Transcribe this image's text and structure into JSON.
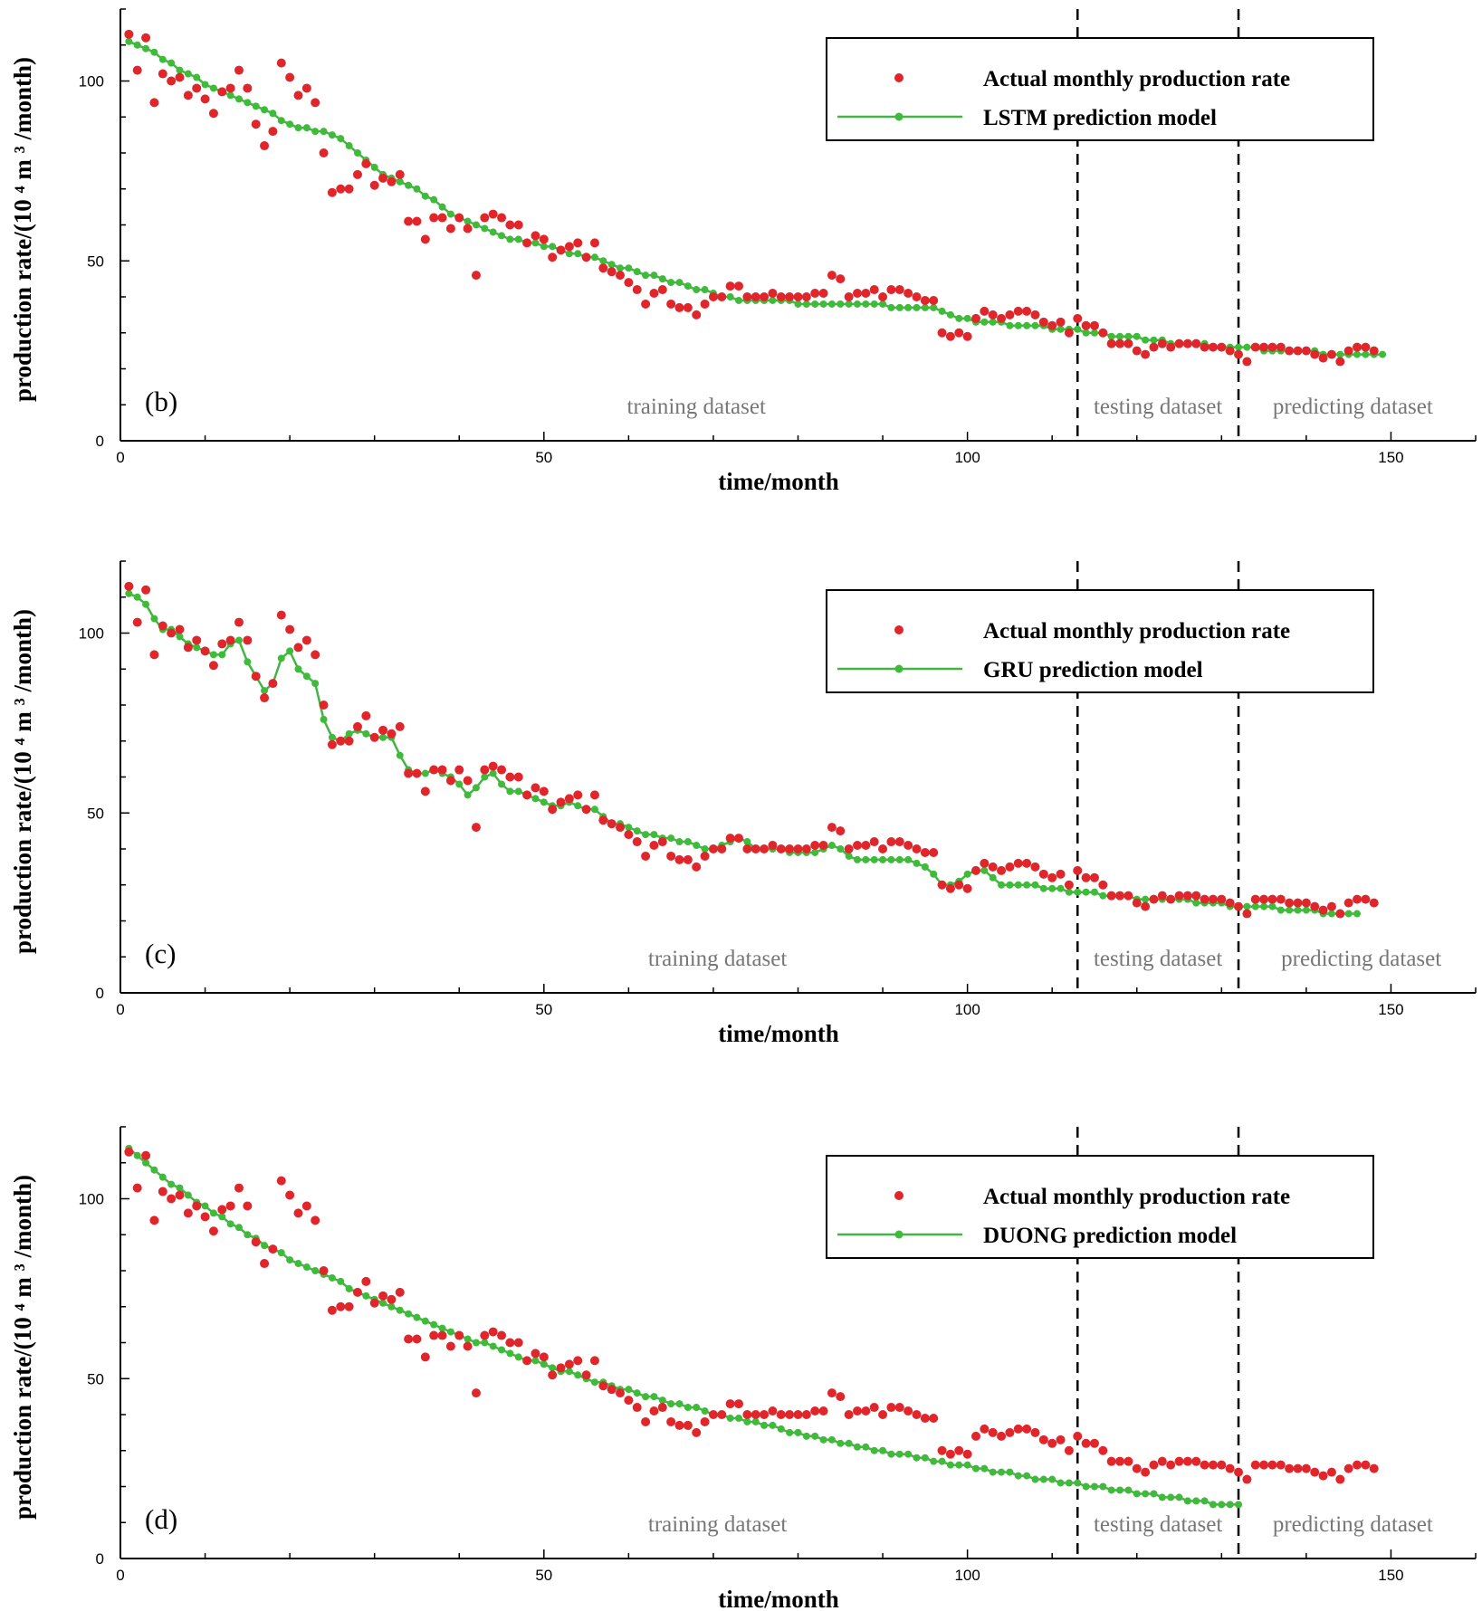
{
  "chart_data": [
    {
      "type": "scatter",
      "panel_label": "(b)",
      "xlabel": "time/month",
      "ylabel": "production rate/(10 ⁴ m ³ /month)",
      "xlim": [
        0,
        160
      ],
      "ylim": [
        0,
        120
      ],
      "xticks": [
        0,
        50,
        100,
        150
      ],
      "yticks": [
        0,
        50,
        100
      ],
      "dividers": [
        113,
        132
      ],
      "region_labels": [
        {
          "text": "training dataset",
          "x": 68
        },
        {
          "text": "testing dataset",
          "x": 122.5
        },
        {
          "text": "predicting dataset",
          "x": 145.5
        }
      ],
      "legend": {
        "actual": "Actual monthly production rate",
        "model": "LSTM prediction model",
        "position": "top-right"
      },
      "model_key": "lstm"
    },
    {
      "type": "scatter",
      "panel_label": "(c)",
      "xlabel": "time/month",
      "ylabel": "production rate/(10 ⁴ m ³ /month)",
      "xlim": [
        0,
        160
      ],
      "ylim": [
        0,
        120
      ],
      "xticks": [
        0,
        50,
        100,
        150
      ],
      "yticks": [
        0,
        50,
        100
      ],
      "dividers": [
        113,
        132
      ],
      "region_labels": [
        {
          "text": "training dataset",
          "x": 70.5
        },
        {
          "text": "testing dataset",
          "x": 122.5
        },
        {
          "text": "predicting dataset",
          "x": 146.5
        }
      ],
      "legend": {
        "actual": "Actual monthly production rate",
        "model": "GRU prediction model",
        "position": "top-right"
      },
      "model_key": "gru"
    },
    {
      "type": "scatter",
      "panel_label": "(d)",
      "xlabel": "time/month",
      "ylabel": "production rate/(10 ⁴ m ³ /month)",
      "xlim": [
        0,
        160
      ],
      "ylim": [
        0,
        120
      ],
      "xticks": [
        0,
        50,
        100,
        150
      ],
      "yticks": [
        0,
        50,
        100
      ],
      "dividers": [
        113,
        132
      ],
      "region_labels": [
        {
          "text": "training dataset",
          "x": 70.5
        },
        {
          "text": "testing dataset",
          "x": 122.5
        },
        {
          "text": "predicting dataset",
          "x": 145.5
        }
      ],
      "legend": {
        "actual": "Actual monthly production rate",
        "model": "DUONG prediction model",
        "position": "top-right"
      },
      "model_key": "duong"
    }
  ],
  "series": {
    "actual": [
      113,
      103,
      112,
      94,
      102,
      100,
      101,
      96,
      98,
      95,
      91,
      97,
      98,
      103,
      98,
      88,
      82,
      86,
      105,
      101,
      96,
      98,
      94,
      80,
      69,
      70,
      70,
      74,
      77,
      71,
      73,
      72,
      74,
      61,
      61,
      56,
      62,
      62,
      59,
      62,
      59,
      46,
      62,
      63,
      62,
      60,
      60,
      55,
      57,
      56,
      51,
      53,
      54,
      55,
      51,
      55,
      48,
      47,
      46,
      44,
      42,
      38,
      41,
      42,
      38,
      37,
      37,
      35,
      38,
      40,
      40,
      43,
      43,
      40,
      40,
      40,
      41,
      40,
      40,
      40,
      40,
      41,
      41,
      46,
      45,
      40,
      41,
      41,
      42,
      40,
      42,
      42,
      41,
      40,
      39,
      39,
      30,
      29,
      30,
      29,
      34,
      36,
      35,
      34,
      35,
      36,
      36,
      35,
      33,
      32,
      33,
      30,
      34,
      32,
      32,
      30,
      27,
      27,
      27,
      25,
      24,
      26,
      27,
      26,
      27,
      27,
      27,
      26,
      26,
      26,
      25,
      24,
      22,
      26,
      26,
      26,
      26,
      25,
      25,
      25,
      24,
      23,
      24,
      22,
      25,
      26,
      26,
      25
    ],
    "lstm": [
      111,
      110,
      109,
      108,
      106,
      105,
      103,
      102,
      101,
      99,
      98,
      97,
      96,
      95,
      94,
      93,
      92,
      91,
      89,
      88,
      87,
      87,
      86,
      86,
      85,
      84,
      82,
      80,
      78,
      76,
      74,
      73,
      72,
      71,
      70,
      68,
      67,
      65,
      63,
      62,
      61,
      60,
      59,
      58,
      57,
      56,
      56,
      55,
      55,
      54,
      54,
      53,
      52,
      52,
      51,
      51,
      50,
      49,
      48,
      48,
      47,
      46,
      46,
      45,
      44,
      44,
      43,
      42,
      42,
      41,
      40,
      40,
      39,
      39,
      39,
      39,
      39,
      39,
      39,
      38,
      38,
      38,
      38,
      38,
      38,
      38,
      38,
      38,
      38,
      38,
      37,
      37,
      37,
      37,
      37,
      37,
      36,
      35,
      34,
      34,
      33,
      33,
      33,
      33,
      32,
      32,
      32,
      32,
      32,
      31,
      31,
      31,
      31,
      30,
      30,
      30,
      29,
      29,
      29,
      29,
      28,
      28,
      28,
      27,
      27,
      27,
      27,
      27,
      26,
      26,
      26,
      26,
      26,
      26,
      25,
      25,
      25,
      25,
      25,
      25,
      25,
      24,
      24,
      24,
      24,
      24,
      24,
      24,
      24
    ],
    "gru": [
      111,
      110,
      108,
      104,
      101,
      101,
      99,
      97,
      96,
      95,
      94,
      94,
      97,
      98,
      92,
      88,
      84,
      86,
      93,
      95,
      90,
      88,
      86,
      76,
      71,
      70,
      72,
      73,
      72,
      71,
      71,
      71,
      66,
      62,
      61,
      61,
      62,
      61,
      60,
      58,
      55,
      57,
      60,
      61,
      58,
      56,
      56,
      55,
      54,
      53,
      52,
      52,
      53,
      52,
      51,
      51,
      49,
      47,
      47,
      46,
      45,
      44,
      44,
      43,
      43,
      42,
      42,
      41,
      40,
      40,
      41,
      42,
      43,
      42,
      40,
      40,
      40,
      40,
      39,
      39,
      39,
      39,
      40,
      41,
      40,
      38,
      37,
      37,
      37,
      37,
      37,
      37,
      37,
      36,
      35,
      33,
      30,
      30,
      31,
      33,
      34,
      34,
      32,
      30,
      30,
      30,
      30,
      30,
      29,
      29,
      29,
      28,
      28,
      28,
      28,
      27,
      27,
      27,
      27,
      26,
      26,
      26,
      26,
      26,
      26,
      26,
      25,
      25,
      25,
      25,
      24,
      24,
      24,
      24,
      24,
      24,
      23,
      23,
      23,
      23,
      23,
      22,
      22,
      22,
      22,
      22
    ],
    "duong": [
      114,
      112,
      110,
      108,
      106,
      104,
      103,
      101,
      99,
      98,
      96,
      95,
      93,
      92,
      90,
      89,
      87,
      86,
      85,
      83,
      82,
      81,
      80,
      79,
      78,
      77,
      75,
      74,
      73,
      72,
      71,
      70,
      69,
      68,
      67,
      66,
      65,
      64,
      63,
      62,
      61,
      60,
      60,
      59,
      58,
      57,
      56,
      55,
      55,
      54,
      53,
      52,
      52,
      51,
      50,
      49,
      49,
      48,
      47,
      47,
      46,
      45,
      45,
      44,
      43,
      43,
      42,
      42,
      41,
      40,
      40,
      39,
      39,
      38,
      38,
      37,
      37,
      36,
      35,
      35,
      34,
      34,
      33,
      33,
      32,
      32,
      31,
      31,
      30,
      30,
      29,
      29,
      29,
      28,
      28,
      27,
      27,
      26,
      26,
      26,
      25,
      25,
      24,
      24,
      24,
      23,
      23,
      22,
      22,
      22,
      21,
      21,
      21,
      20,
      20,
      20,
      19,
      19,
      19,
      18,
      18,
      18,
      17,
      17,
      17,
      16,
      16,
      16,
      15,
      15,
      15,
      15
    ]
  },
  "colors": {
    "actual": "#e0262a",
    "model": "#3fba3a",
    "model_line": "#44b544",
    "axis": "#000000",
    "region_text": "#777777"
  }
}
